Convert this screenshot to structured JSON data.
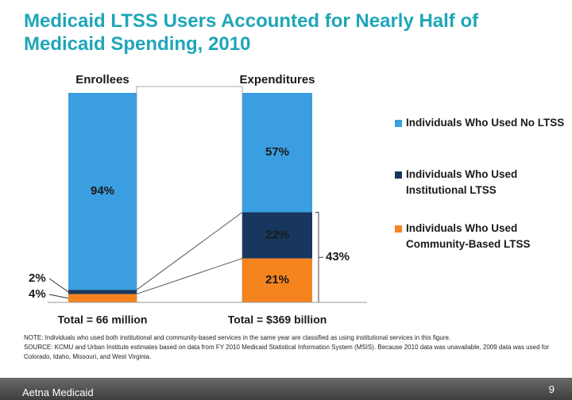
{
  "chart_data": {
    "type": "stacked_bar",
    "title": "Medicaid LTSS Users Accounted for Nearly Half of Medicaid Spending, 2010",
    "categories": [
      "Enrollees",
      "Expenditures"
    ],
    "totals": [
      "Total = 66 million",
      "Total = $369 billion"
    ],
    "series": [
      {
        "name": "Individuals Who Used No LTSS",
        "color": "#3a9ee0",
        "values": [
          94,
          57
        ],
        "value_labels": [
          "94%",
          "57%"
        ]
      },
      {
        "name": "Individuals Who Used Institutional LTSS",
        "color": "#17375e",
        "values": [
          2,
          22
        ],
        "value_labels": [
          "2%",
          "22%"
        ]
      },
      {
        "name": "Individuals Who Used Community-Based LTSS",
        "color": "#f5841f",
        "values": [
          4,
          21
        ],
        "value_labels": [
          "4%",
          "21%"
        ]
      }
    ],
    "ylim": [
      0,
      100
    ],
    "annotations": [
      {
        "text": "43%"
      }
    ]
  },
  "notes": {
    "note": "NOTE: Individuals who used both institutional and community-based services in the same year are classified as using institutional services in this figure.",
    "source": "SOURCE: KCMU and Urban Institute estimates based on data from FY 2010 Medicaid Statistical Information System (MSIS). Because 2010 data was unavailable, 2009 data was used for Colorado, Idaho, Missouri, and West Virginia."
  },
  "footer": {
    "left": "Aetna Medicaid",
    "page": "9"
  }
}
